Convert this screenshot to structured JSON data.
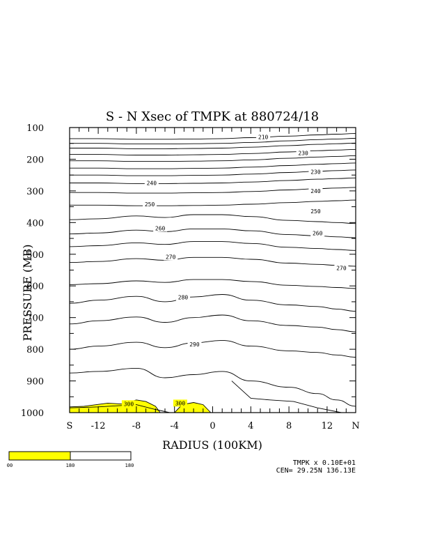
{
  "chart_data": {
    "type": "contour",
    "title": "S - N Xsec of TMPK at 880724/18",
    "xlabel": "RADIUS (100KM)",
    "ylabel": "PRESSURE (MB)",
    "x_ticks": [
      "S",
      "-12",
      "-8",
      "-4",
      "0",
      "4",
      "8",
      "12",
      "N"
    ],
    "y_ticks": [
      "100",
      "200",
      "300",
      "400",
      "500",
      "600",
      "700",
      "800",
      "900",
      "1000"
    ],
    "y_values": [
      100,
      200,
      300,
      400,
      500,
      600,
      700,
      800,
      900,
      1000
    ],
    "xlim": [
      -15,
      15
    ],
    "ylim": [
      100,
      1000
    ],
    "contour_labels": [
      {
        "text": "210",
        "x": 5.3,
        "p": 130
      },
      {
        "text": "230",
        "x": 9.5,
        "p": 180
      },
      {
        "text": "230",
        "x": 10.8,
        "p": 240
      },
      {
        "text": "240",
        "x": -6.4,
        "p": 275
      },
      {
        "text": "240",
        "x": 10.8,
        "p": 300
      },
      {
        "text": "250",
        "x": -6.6,
        "p": 342
      },
      {
        "text": "250",
        "x": 10.8,
        "p": 364
      },
      {
        "text": "260",
        "x": -5.5,
        "p": 418
      },
      {
        "text": "260",
        "x": 11.0,
        "p": 433
      },
      {
        "text": "270",
        "x": -4.4,
        "p": 508
      },
      {
        "text": "270",
        "x": 13.5,
        "p": 543
      },
      {
        "text": "280",
        "x": -3.1,
        "p": 636
      },
      {
        "text": "290",
        "x": -1.9,
        "p": 784
      },
      {
        "text": "300",
        "x": -8.8,
        "p": 972
      },
      {
        "text": "300",
        "x": -3.4,
        "p": 970
      }
    ],
    "shaded_above": 300,
    "colorbar": {
      "colors": [
        "#ffff00",
        "#ffffff"
      ],
      "labels": [
        "00",
        "180",
        "180"
      ]
    },
    "footnote_line1": "TMPK x  0.10E+01",
    "footnote_line2": "CEN= 29.25N  136.13E"
  }
}
